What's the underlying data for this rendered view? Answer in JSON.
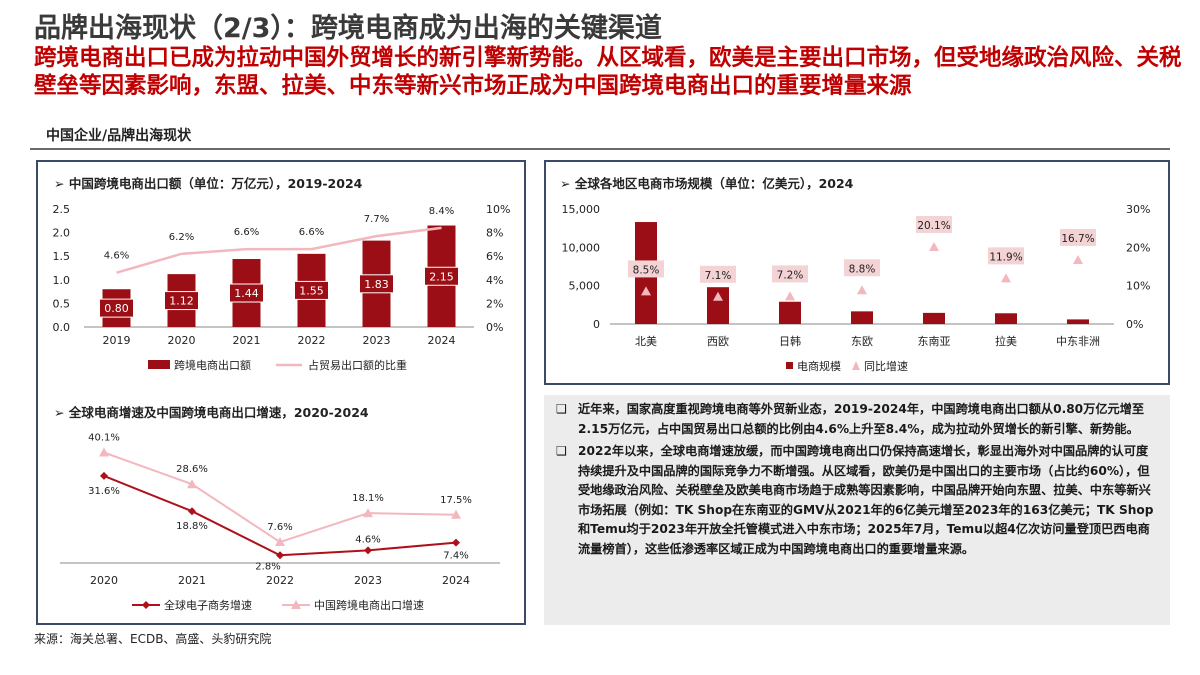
{
  "header": {
    "title": "品牌出海现状（2/3）：跨境电商成为出海的关键渠道",
    "subtitle": "跨境电商出口已成为拉动中国外贸增长的新引擎新势能。从区域看，欧美是主要出口市场，但受地缘政治风险、关税壁垒等因素影响，东盟、拉美、中东等新兴市场正成为中国跨境电商出口的重要增量来源"
  },
  "section_label": "中国企业/品牌出海现状",
  "colors": {
    "accent_red": "#c00000",
    "bar_red": "#9b0e15",
    "line_pink": "#f2b8be",
    "line_dark": "#b0101a",
    "panel_border": "#3b4a66"
  },
  "chart_data": [
    {
      "type": "bar",
      "title": "➢  中国跨境电商出口额（单位：万亿元），2019-2024",
      "categories": [
        "2019",
        "2020",
        "2021",
        "2022",
        "2023",
        "2024"
      ],
      "series": [
        {
          "name": "跨境电商出口额",
          "axis": "left",
          "values": [
            0.8,
            1.12,
            1.44,
            1.55,
            1.83,
            2.15
          ],
          "labels": [
            "0.80",
            "1.12",
            "1.44",
            "1.55",
            "1.83",
            "2.15"
          ]
        },
        {
          "name": "占贸易出口额的比重",
          "axis": "right",
          "type": "line",
          "values": [
            4.6,
            6.2,
            6.6,
            6.6,
            7.7,
            8.4
          ],
          "labels": [
            "4.6%",
            "6.2%",
            "6.6%",
            "6.6%",
            "7.7%",
            "8.4%"
          ]
        }
      ],
      "ylim_left": [
        0,
        2.5
      ],
      "yticks_left": [
        "0.0",
        "0.5",
        "1.0",
        "1.5",
        "2.0",
        "2.5"
      ],
      "ylim_right": [
        0,
        10
      ],
      "yticks_right": [
        "0%",
        "2%",
        "4%",
        "6%",
        "8%",
        "10%"
      ],
      "legend": "bottom"
    },
    {
      "type": "line",
      "title": "➢  全球电商增速及中国跨境电商出口增速，2020-2024",
      "categories": [
        "2020",
        "2021",
        "2022",
        "2023",
        "2024"
      ],
      "series": [
        {
          "name": "全球电子商务增速",
          "values": [
            31.6,
            18.8,
            2.8,
            4.6,
            7.4
          ],
          "labels": [
            "31.6%",
            "18.8%",
            "2.8%",
            "4.6%",
            "7.4%"
          ]
        },
        {
          "name": "中国跨境电商出口增速",
          "values": [
            40.1,
            28.6,
            7.6,
            18.1,
            17.5
          ],
          "labels": [
            "40.1%",
            "28.6%",
            "7.6%",
            "18.1%",
            "17.5%"
          ]
        }
      ],
      "ylim": [
        0,
        45
      ],
      "legend": "bottom"
    },
    {
      "type": "bar",
      "title": "➢  全球各地区电商市场规模（单位：亿美元），2024",
      "categories": [
        "北美",
        "西欧",
        "日韩",
        "东欧",
        "东南亚",
        "拉美",
        "中东非洲"
      ],
      "series": [
        {
          "name": "电商规模",
          "axis": "left",
          "values": [
            13300,
            4800,
            2900,
            1650,
            1450,
            1400,
            600
          ]
        },
        {
          "name": "同比增速",
          "axis": "right",
          "type": "scatter",
          "values": [
            8.5,
            7.1,
            7.2,
            8.8,
            20.1,
            11.9,
            16.7
          ],
          "labels": [
            "8.5%",
            "7.1%",
            "7.2%",
            "8.8%",
            "20.1%",
            "11.9%",
            "16.7%"
          ]
        }
      ],
      "ylim_left": [
        0,
        15000
      ],
      "yticks_left": [
        "0",
        "5,000",
        "10,000",
        "15,000"
      ],
      "ylim_right": [
        0,
        30
      ],
      "yticks_right": [
        "0%",
        "10%",
        "20%",
        "30%"
      ],
      "legend": "bottom"
    }
  ],
  "notes": [
    "近年来，国家高度重视跨境电商等外贸新业态，2019-2024年，中国跨境电商出口额从0.80万亿元增至2.15万亿元，占中国贸易出口总额的比例由4.6%上升至8.4%，成为拉动外贸增长的新引擎、新势能。",
    "2022年以来，全球电商增速放缓，而中国跨境电商出口仍保持高速增长，彰显出海外对中国品牌的认可度持续提升及中国品牌的国际竞争力不断增强。从区域看，欧美仍是中国出口的主要市场（占比约60%），但受地缘政治风险、关税壁垒及欧美电商市场趋于成熟等因素影响，中国品牌开始向东盟、拉美、中东等新兴市场拓展（例如：TK Shop在东南亚的GMV从2021年的6亿美元增至2023年的163亿美元；TK Shop和Temu均于2023年开放全托管模式进入中东市场；2025年7月，Temu以超4亿次访问量登顶巴西电商流量榜首），这些低渗透率区域正成为中国跨境电商出口的重要增量来源。"
  ],
  "note_bullet": "❑",
  "source": "来源：海关总署、ECDB、高盛、头豹研究院"
}
